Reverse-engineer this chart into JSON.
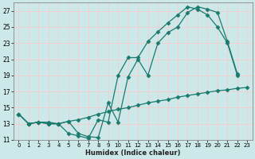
{
  "xlabel": "Humidex (Indice chaleur)",
  "bg_color": "#cce8e8",
  "grid_color": "#f5cccc",
  "line_color": "#1a7a6e",
  "xlim": [
    -0.5,
    23.5
  ],
  "ylim": [
    11,
    28
  ],
  "yticks": [
    11,
    13,
    15,
    17,
    19,
    21,
    23,
    25,
    27
  ],
  "xticks": [
    0,
    1,
    2,
    3,
    4,
    5,
    6,
    7,
    8,
    9,
    10,
    11,
    12,
    13,
    14,
    15,
    16,
    17,
    18,
    19,
    20,
    21,
    22,
    23
  ],
  "line1_x": [
    0,
    1,
    2,
    3,
    4,
    5,
    6,
    7,
    8,
    9,
    10,
    11,
    12,
    13,
    14,
    15,
    16,
    17,
    18,
    19,
    20,
    21,
    22,
    23
  ],
  "line1_y": [
    14.2,
    13.0,
    13.2,
    13.2,
    13.0,
    13.3,
    13.5,
    13.8,
    14.2,
    14.5,
    14.8,
    15.0,
    15.3,
    15.6,
    15.8,
    16.0,
    16.3,
    16.5,
    16.7,
    16.9,
    17.1,
    17.2,
    17.4,
    17.5
  ],
  "line2_x": [
    0,
    1,
    2,
    3,
    4,
    5,
    6,
    7,
    8,
    9,
    10,
    11,
    12,
    13,
    14,
    15,
    16,
    17,
    18,
    19,
    20,
    21,
    22,
    23
  ],
  "line2_y": [
    14.2,
    13.0,
    13.2,
    13.0,
    13.0,
    11.8,
    11.5,
    11.2,
    13.5,
    13.2,
    19.0,
    21.2,
    21.2,
    23.2,
    24.4,
    25.5,
    26.5,
    27.5,
    27.2,
    26.5,
    25.0,
    23.0,
    19.0,
    null
  ],
  "line3_x": [
    0,
    1,
    2,
    3,
    4,
    5,
    6,
    7,
    8,
    9,
    10,
    11,
    12,
    13,
    14,
    15,
    16,
    17,
    18,
    19,
    20,
    21,
    22,
    23
  ],
  "line3_y": [
    14.2,
    13.0,
    13.2,
    13.0,
    13.0,
    13.3,
    11.8,
    11.4,
    11.3,
    15.6,
    13.2,
    18.8,
    21.0,
    19.0,
    23.0,
    24.3,
    25.0,
    26.8,
    27.5,
    27.2,
    26.8,
    23.2,
    19.2,
    null
  ]
}
